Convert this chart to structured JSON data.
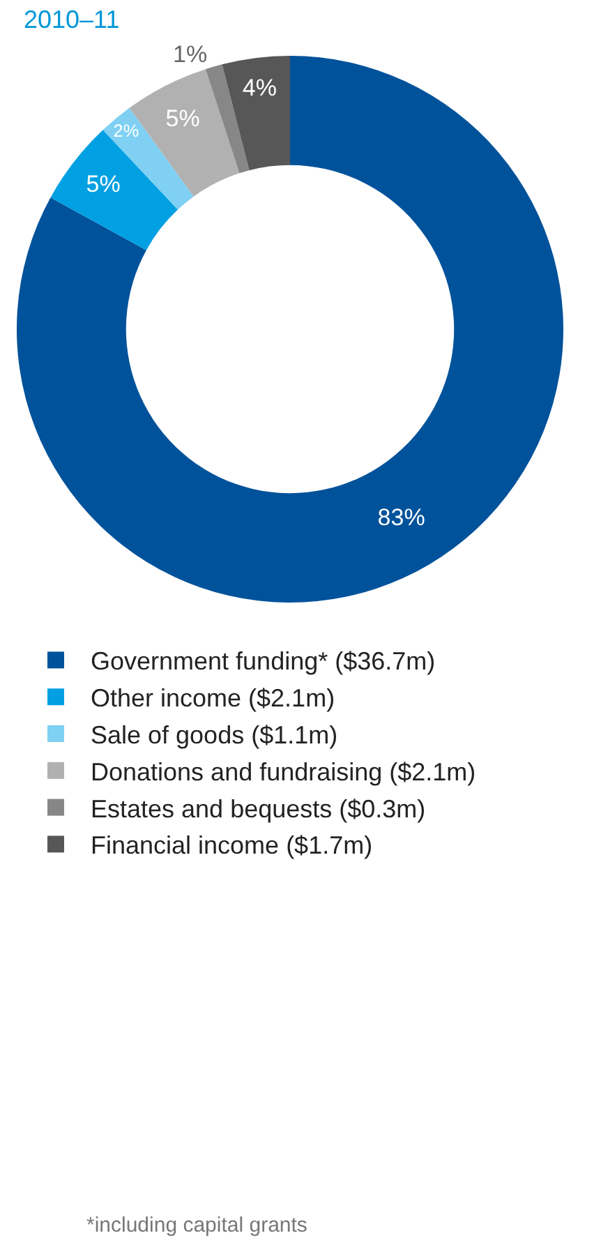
{
  "chart_data": {
    "type": "donut",
    "title": "2010–11",
    "categories": [
      "Government funding* ($36.7m)",
      "Other income ($2.1m)",
      "Sale of goods ($1.1m)",
      "Donations and fundraising ($2.1m)",
      "Estates and bequests ($0.3m)",
      "Financial income ($1.7m)"
    ],
    "values": [
      83,
      5,
      2,
      5,
      1,
      4
    ],
    "value_labels": [
      "83%",
      "5%",
      "2%",
      "5%",
      "1%",
      "4%"
    ],
    "colors": [
      "#00529b",
      "#00a0e2",
      "#7fd0f3",
      "#b1b1b1",
      "#878787",
      "#575757"
    ],
    "legend": "bottom",
    "annotations": [
      "*including capital grants"
    ]
  }
}
